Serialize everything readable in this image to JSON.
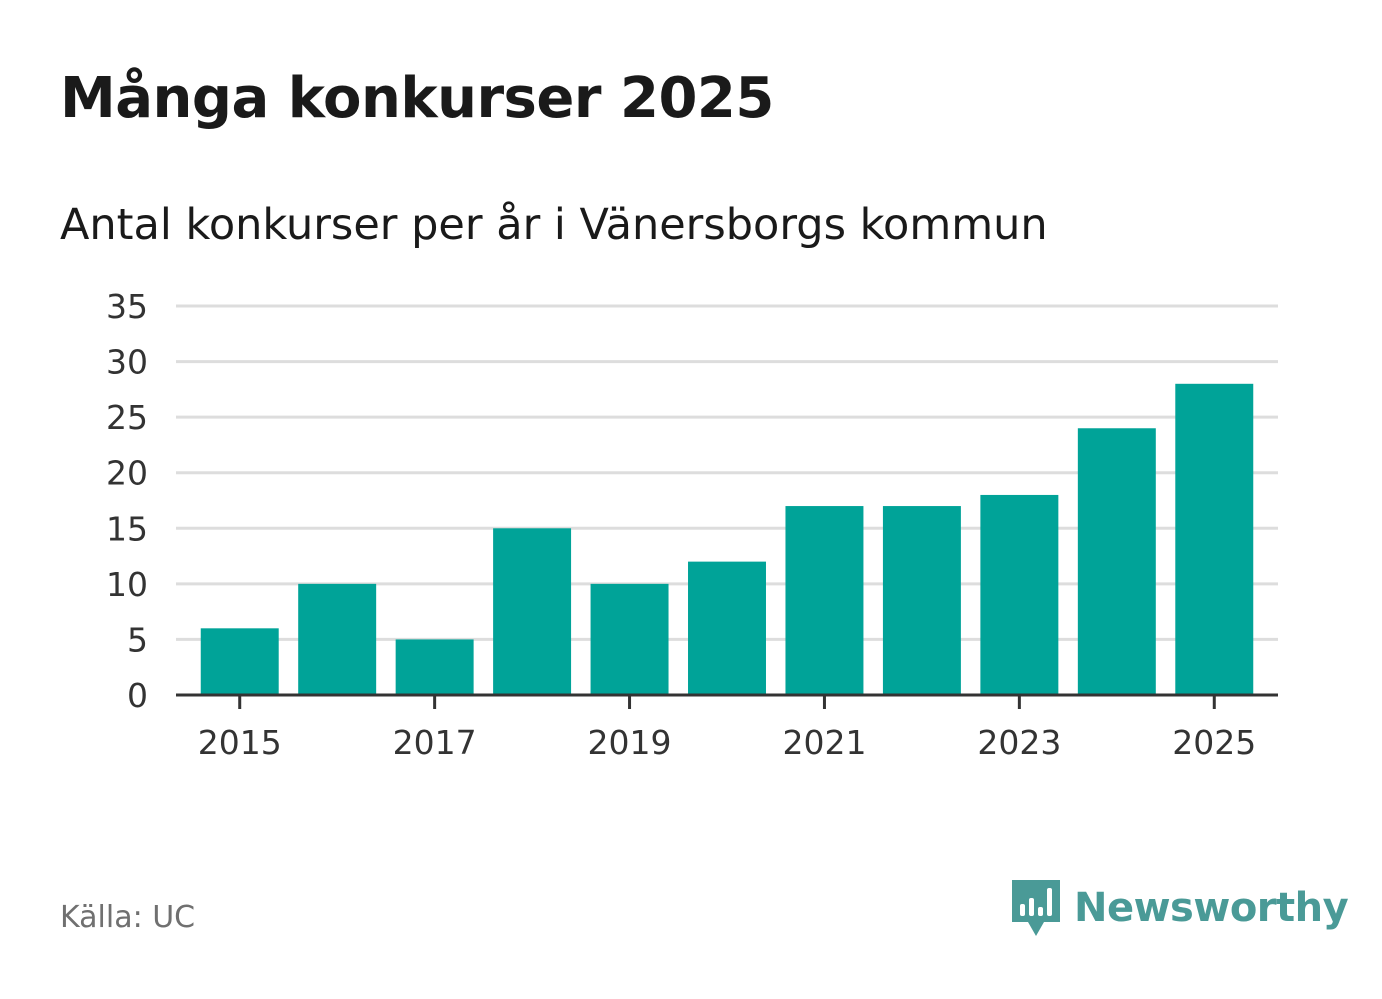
{
  "title": "Många konkurser 2025",
  "subtitle": "Antal konkurser per år i Vänersborgs kommun",
  "source": "Källa: UC",
  "brand": {
    "name": "Newsworthy",
    "icon": "newsworthy-logo-icon",
    "color": "#4a9a97"
  },
  "colors": {
    "bar": "#00a398",
    "grid": "#dddddd",
    "axis": "#333333"
  },
  "chart_data": {
    "type": "bar",
    "categories": [
      "2015",
      "2016",
      "2017",
      "2018",
      "2019",
      "2020",
      "2021",
      "2022",
      "2023",
      "2024",
      "2025"
    ],
    "values": [
      6,
      10,
      5,
      15,
      10,
      12,
      17,
      17,
      18,
      24,
      28
    ],
    "x_tick_labels": [
      "2015",
      "2017",
      "2019",
      "2021",
      "2023",
      "2025"
    ],
    "y_ticks": [
      "0",
      "5",
      "10",
      "15",
      "20",
      "25",
      "30",
      "35"
    ],
    "ylim": [
      0,
      35
    ],
    "grid": true,
    "xlabel": "",
    "ylabel": ""
  }
}
